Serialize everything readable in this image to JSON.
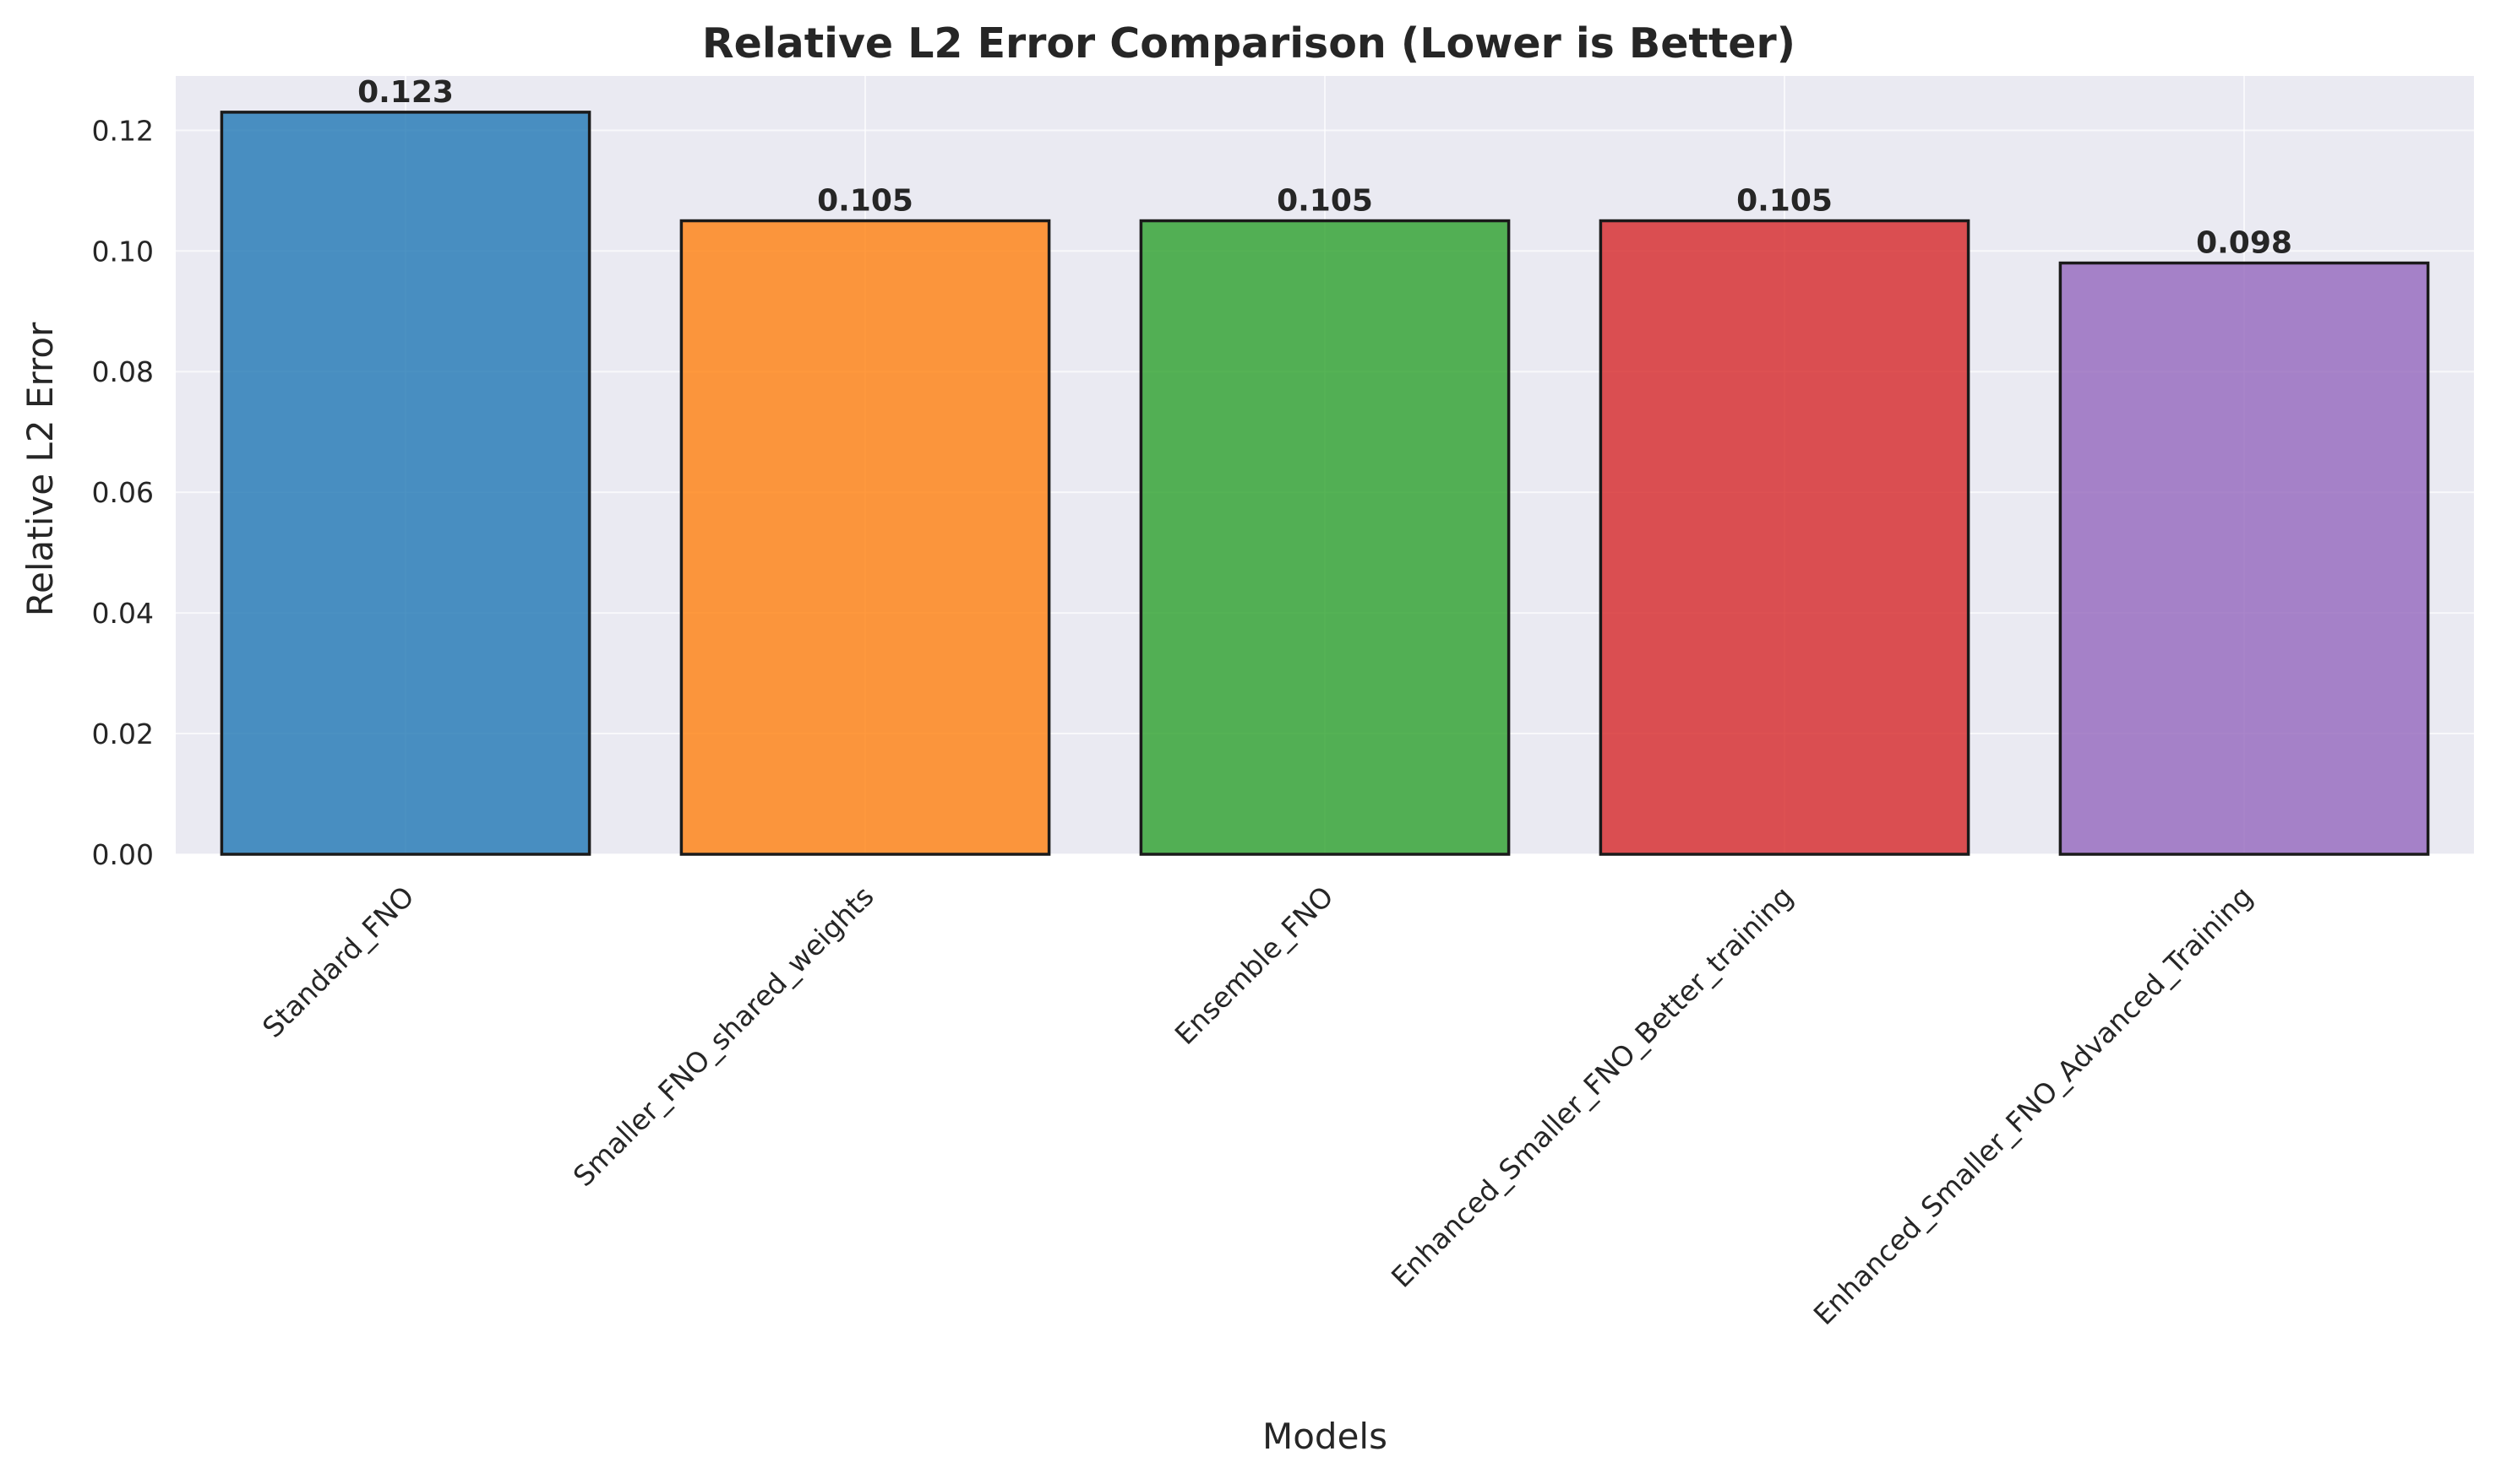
{
  "chart_data": {
    "type": "bar",
    "title": "Relative L2 Error Comparison (Lower is Better)",
    "xlabel": "Models",
    "ylabel": "Relative L2 Error",
    "categories": [
      "Standard_FNO",
      "Smaller_FNO_shared_weights",
      "Ensemble_FNO",
      "Enhanced_Smaller_FNO_Better_training",
      "Enhanced_Smaller_FNO_Advanced_Training"
    ],
    "values": [
      0.123,
      0.105,
      0.105,
      0.105,
      0.098
    ],
    "value_labels": [
      "0.123",
      "0.105",
      "0.105",
      "0.105",
      "0.098"
    ],
    "colors": [
      "#1f77b4",
      "#ff7f0e",
      "#2ca02c",
      "#d62728",
      "#9467bd"
    ],
    "ylim": [
      0,
      0.129
    ],
    "yticks": [
      0.0,
      0.02,
      0.04,
      0.06,
      0.08,
      0.1,
      0.12
    ],
    "ytick_labels": [
      "0.00",
      "0.02",
      "0.04",
      "0.06",
      "0.08",
      "0.10",
      "0.12"
    ],
    "grid": true,
    "background": "#eaeaf2"
  }
}
